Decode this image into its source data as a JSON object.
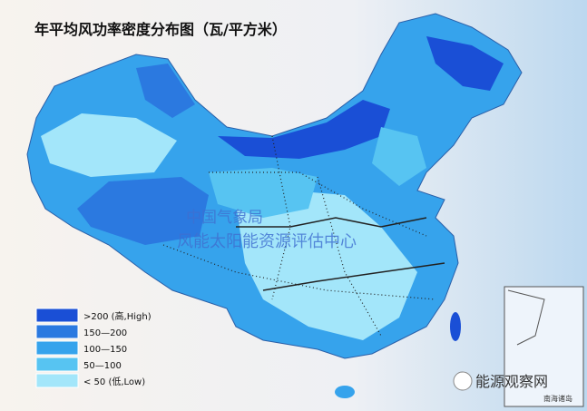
{
  "title": "年平均风功率密度分布图（瓦/平方米）",
  "legend": [
    {
      "label": ">200 (高,High)",
      "color": "#1a4fd6"
    },
    {
      "label": "150—200",
      "color": "#2b79e0"
    },
    {
      "label": "100—150",
      "color": "#36a3ec"
    },
    {
      "label": "50—100",
      "color": "#57c4f2"
    },
    {
      "label": "< 50 (低,Low)",
      "color": "#a3e6fa"
    }
  ],
  "watermark": {
    "line1": "中国气象局",
    "line2": "风能太阳能资源评估中心"
  },
  "inset": {
    "label": "南海诸岛"
  },
  "logo": {
    "label": "能源观察网"
  }
}
